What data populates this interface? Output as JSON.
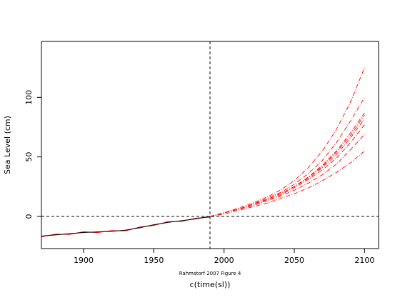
{
  "chart_data": {
    "type": "line",
    "xlabel": "c(time(sl))",
    "ylabel": "Sea Level (cm)",
    "annotation": "Rahmstorf 2007 Figure 4",
    "xlim": [
      1870,
      2110
    ],
    "ylim": [
      -27,
      147
    ],
    "x_ticks": [
      1900,
      1950,
      2000,
      2050,
      2100
    ],
    "x_tick_labels": [
      "1900",
      "1950",
      "2000",
      "2050",
      "2100"
    ],
    "y_ticks": [
      0,
      50,
      100
    ],
    "y_tick_labels": [
      "0",
      "50",
      "100"
    ],
    "reference_lines": {
      "vertical_x": 1990,
      "horizontal_y": 0
    },
    "grid": false,
    "colors": {
      "historical": "#000000",
      "projections": "#ff0000",
      "reference": "#000000"
    },
    "historical": {
      "x": [
        1870,
        1880,
        1890,
        1900,
        1910,
        1920,
        1930,
        1940,
        1950,
        1960,
        1970,
        1980,
        1990
      ],
      "y": [
        -16.5,
        -15.5,
        -14.5,
        -13.5,
        -13,
        -12.5,
        -11.5,
        -9.5,
        -7,
        -5,
        -3.5,
        -2,
        0
      ]
    },
    "projection_x": [
      1990,
      2000,
      2010,
      2020,
      2030,
      2040,
      2050,
      2060,
      2070,
      2080,
      2090,
      2100
    ],
    "series": [
      {
        "values": [
          0,
          3,
          7,
          11,
          16,
          22,
          30,
          41,
          55,
          73,
          96,
          125
        ]
      },
      {
        "values": [
          0,
          3,
          6,
          10,
          15,
          20,
          27,
          36,
          47,
          62,
          80,
          100
        ]
      },
      {
        "values": [
          0,
          3,
          6,
          10,
          14,
          19,
          25,
          33,
          43,
          55,
          70,
          87
        ]
      },
      {
        "values": [
          0,
          3,
          6,
          10,
          14,
          19,
          25,
          33,
          42,
          54,
          68,
          85
        ]
      },
      {
        "values": [
          0,
          3,
          6,
          10,
          14,
          19,
          25,
          32,
          41,
          52,
          66,
          82
        ]
      },
      {
        "values": [
          0,
          3,
          6,
          9,
          13,
          18,
          24,
          31,
          39,
          49,
          62,
          77
        ]
      },
      {
        "values": [
          0,
          3,
          6,
          9,
          13,
          17,
          22,
          28,
          35,
          44,
          56,
          69
        ]
      },
      {
        "values": [
          0,
          2,
          5,
          8,
          11,
          15,
          19,
          24,
          30,
          37,
          45,
          55
        ]
      }
    ]
  }
}
